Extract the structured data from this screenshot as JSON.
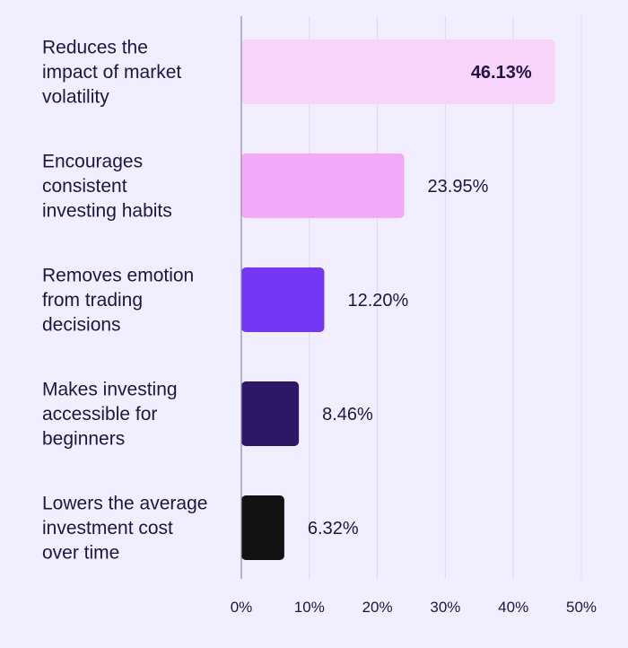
{
  "chart_data": {
    "type": "bar",
    "orientation": "horizontal",
    "categories": [
      "Reduces the impact of market volatility",
      "Encourages consistent investing habits",
      "Removes emotion from trading decisions",
      "Makes investing accessible for beginners",
      "Lowers the average investment cost over time"
    ],
    "category_lines": [
      [
        "Reduces the",
        "impact of market",
        "volatility"
      ],
      [
        "Encourages",
        "consistent",
        "investing habits"
      ],
      [
        "Removes emotion",
        "from trading",
        "decisions"
      ],
      [
        "Makes investing",
        "accessible for",
        "beginners"
      ],
      [
        "Lowers the average",
        "investment cost",
        "over time"
      ]
    ],
    "values": [
      46.13,
      23.95,
      12.2,
      8.46,
      6.32
    ],
    "value_labels": [
      "46.13%",
      "23.95%",
      "12.20%",
      "8.46%",
      "6.32%"
    ],
    "bar_colors": [
      "#f8d4fa",
      "#f2a9f7",
      "#7438f4",
      "#2f1768",
      "#121212"
    ],
    "xlim": [
      0,
      50
    ],
    "ticks": [
      0,
      10,
      20,
      30,
      40,
      50
    ],
    "tick_labels": [
      "0%",
      "10%",
      "20%",
      "30%",
      "40%",
      "50%"
    ],
    "grid": true,
    "legend": "none",
    "title": "",
    "xlabel": "",
    "ylabel": ""
  }
}
